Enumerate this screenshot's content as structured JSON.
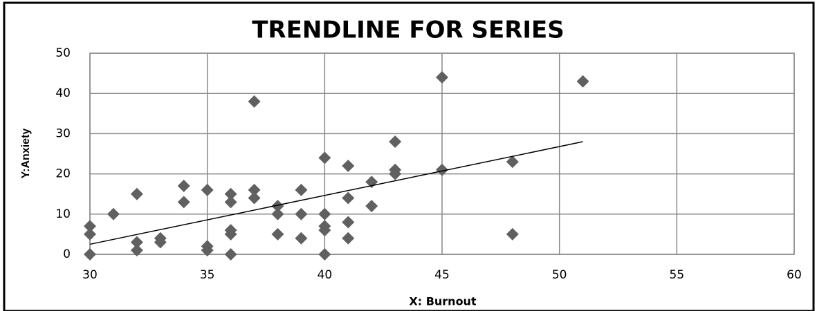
{
  "chart_data": {
    "type": "scatter",
    "title": "TRENDLINE FOR SERIES",
    "x_label": "X: Burnout",
    "y_label": "Y:Anxiety",
    "x": [
      30,
      30,
      30,
      31,
      32,
      32,
      32,
      33,
      33,
      34,
      34,
      35,
      35,
      35,
      36,
      36,
      36,
      36,
      36,
      37,
      37,
      37,
      38,
      38,
      38,
      39,
      39,
      39,
      40,
      40,
      40,
      40,
      40,
      41,
      41,
      41,
      41,
      42,
      42,
      43,
      43,
      43,
      45,
      45,
      48,
      48,
      51
    ],
    "values": [
      7,
      5,
      0,
      10,
      15,
      3,
      1,
      4,
      3,
      17,
      13,
      16,
      2,
      1,
      15,
      13,
      6,
      5,
      0,
      38,
      16,
      14,
      12,
      10,
      5,
      16,
      10,
      4,
      24,
      10,
      7,
      6,
      0,
      22,
      14,
      8,
      4,
      18,
      12,
      28,
      21,
      20,
      44,
      21,
      23,
      5,
      43
    ],
    "color": "#606060",
    "trendline": {
      "x": [
        30,
        51
      ],
      "y": [
        2.5,
        28
      ],
      "color": "#000000"
    },
    "xlim": [
      30,
      60
    ],
    "xticks": [
      30,
      35,
      40,
      45,
      50,
      55,
      60
    ],
    "ylim": [
      0,
      50
    ],
    "yticks": [
      0,
      10,
      20,
      30,
      40,
      50
    ],
    "grid": true
  }
}
